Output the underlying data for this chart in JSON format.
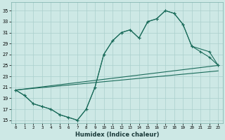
{
  "xlabel": "Humidex (Indice chaleur)",
  "bg_color": "#cde8e5",
  "grid_color": "#aacfcc",
  "line_color": "#1a6b5a",
  "xlim": [
    -0.5,
    23.5
  ],
  "ylim": [
    14.5,
    36.5
  ],
  "xticks": [
    0,
    1,
    2,
    3,
    4,
    5,
    6,
    7,
    8,
    9,
    10,
    11,
    12,
    13,
    14,
    15,
    16,
    17,
    18,
    19,
    20,
    21,
    22,
    23
  ],
  "yticks": [
    15,
    17,
    19,
    21,
    23,
    25,
    27,
    29,
    31,
    33,
    35
  ],
  "line1_x": [
    0,
    1,
    2,
    3,
    4,
    5,
    6,
    7,
    8,
    9,
    10,
    11,
    12,
    13,
    14,
    15,
    16,
    17,
    18,
    19,
    20,
    22,
    23
  ],
  "line1_y": [
    20.5,
    19.5,
    18.0,
    17.5,
    17.0,
    16.0,
    15.5,
    15.0,
    17.0,
    21.0,
    27.0,
    29.5,
    31.0,
    31.5,
    30.0,
    33.0,
    33.5,
    35.0,
    34.5,
    32.5,
    28.5,
    27.5,
    25.0
  ],
  "line2_x": [
    0,
    1,
    2,
    3,
    4,
    5,
    6,
    7,
    8,
    9,
    10,
    11,
    12,
    13,
    14,
    15,
    16,
    17,
    18,
    19,
    20,
    21,
    22,
    23
  ],
  "line2_y": [
    20.5,
    19.5,
    18.0,
    17.5,
    17.0,
    16.0,
    15.5,
    15.0,
    17.0,
    21.0,
    27.0,
    29.5,
    31.0,
    31.5,
    30.0,
    33.0,
    33.5,
    35.0,
    34.5,
    32.5,
    28.5,
    27.5,
    26.5,
    25.0
  ],
  "line3_x": [
    0,
    23
  ],
  "line3_y": [
    20.5,
    25.0
  ],
  "line4_x": [
    0,
    23
  ],
  "line4_y": [
    20.5,
    24.0
  ]
}
